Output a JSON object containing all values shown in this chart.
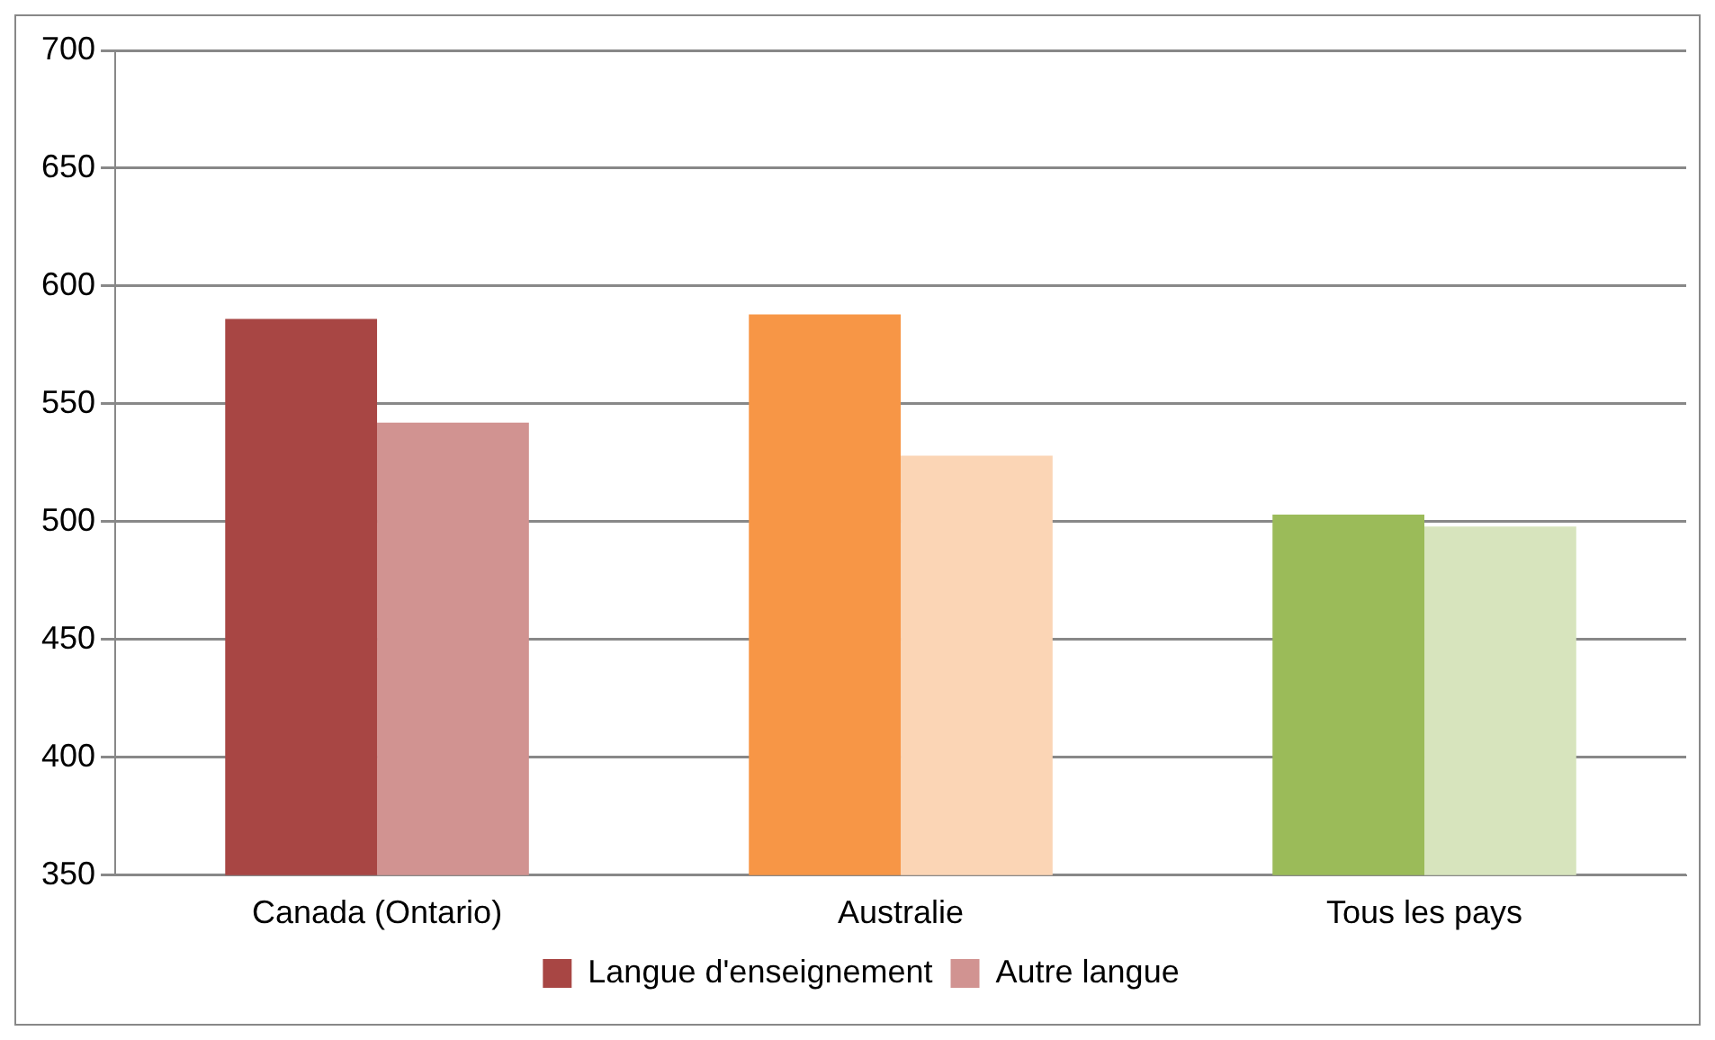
{
  "chart_data": {
    "type": "bar",
    "categories": [
      "Canada (Ontario)",
      "Australie",
      "Tous les pays"
    ],
    "series": [
      {
        "name": "Langue d'enseignement",
        "color": "#a84644",
        "colors": [
          "#a84644",
          "#f79646",
          "#9bbb59"
        ],
        "values": [
          586,
          588,
          503
        ]
      },
      {
        "name": "Autre langue",
        "color": "#d19391",
        "colors": [
          "#d19391",
          "#fbd5b5",
          "#d7e4bd"
        ],
        "values": [
          542,
          528,
          498
        ]
      }
    ],
    "ylim": [
      350,
      700
    ],
    "yticks": [
      350,
      400,
      450,
      500,
      550,
      600,
      650,
      700
    ],
    "grid": "y",
    "legend": "bottom"
  }
}
